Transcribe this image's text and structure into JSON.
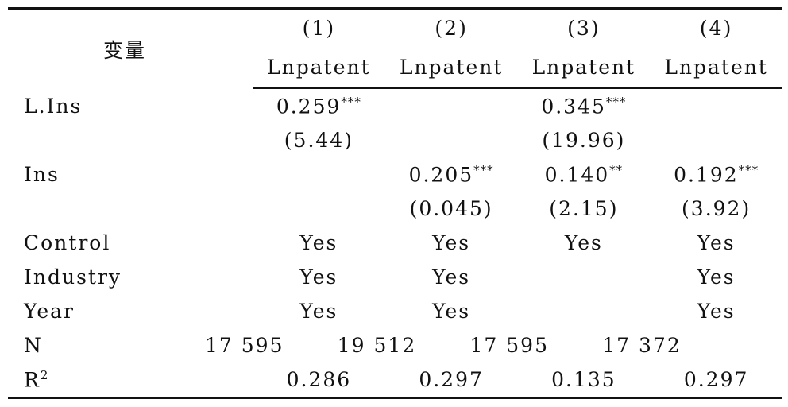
{
  "header": {
    "title": "变量",
    "columns": [
      {
        "number": "(1)",
        "name": "Lnpatent"
      },
      {
        "number": "(2)",
        "name": "Lnpatent"
      },
      {
        "number": "(3)",
        "name": "Lnpatent"
      },
      {
        "number": "(4)",
        "name": "Lnpatent"
      }
    ]
  },
  "table": {
    "rows": [
      {
        "label": "L.Ins",
        "cells": [
          {
            "text": "0.259",
            "sup": "***"
          },
          null,
          {
            "text": "0.345",
            "sup": "***"
          },
          null
        ]
      },
      {
        "label": null,
        "cells": [
          "(5.44)",
          null,
          "(19.96)",
          null
        ]
      },
      {
        "label": "Ins",
        "cells": [
          null,
          {
            "text": "0.205",
            "sup": "***"
          },
          {
            "text": "0.140",
            "sup": "**"
          },
          {
            "text": "0.192",
            "sup": "***"
          }
        ]
      },
      {
        "label": null,
        "cells": [
          null,
          "(0.045)",
          "(2.15)",
          "(3.92)"
        ]
      },
      {
        "label": "Control",
        "cells": [
          "Yes",
          "Yes",
          "Yes",
          "Yes"
        ]
      },
      {
        "label": "Industry",
        "cells": [
          "Yes",
          "Yes",
          null,
          "Yes"
        ]
      },
      {
        "label": "Year",
        "cells": [
          "Yes",
          "Yes",
          null,
          "Yes"
        ]
      },
      {
        "label": "N",
        "cells": [
          "17 595",
          "19 512",
          "17 595",
          "17 372"
        ]
      },
      {
        "label": {
          "text": "R",
          "sup": "2"
        },
        "cells": [
          "0.286",
          "0.297",
          "0.135",
          "0.297"
        ]
      }
    ]
  }
}
